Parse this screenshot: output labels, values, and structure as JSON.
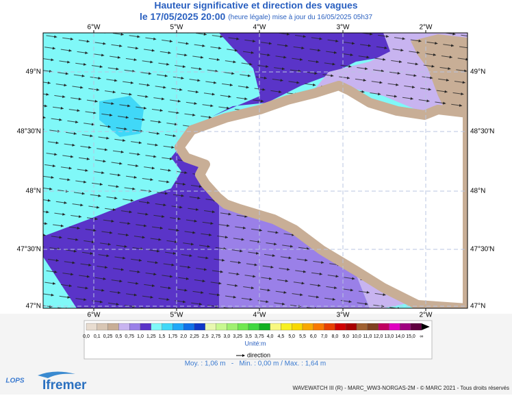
{
  "header": {
    "title": "Hauteur significative et direction des vagues",
    "date": "le 17/05/2025 20:00",
    "note": "(heure légale) mise à jour du 16/05/2025 05h37"
  },
  "map": {
    "lon_labels": [
      "6°W",
      "5°W",
      "4°W",
      "3°W",
      "2°W"
    ],
    "lat_labels": [
      "49°N",
      "48°30'N",
      "48°N",
      "47°30'N",
      "47°N"
    ]
  },
  "legend": {
    "labels": [
      "0,0",
      "0,1",
      "0,25",
      "0,5",
      "0,75",
      "1,0",
      "1,25",
      "1,5",
      "1,75",
      "2,0",
      "2,25",
      "2,5",
      "2,75",
      "3,0",
      "3,25",
      "3,5",
      "3,75",
      "4,0",
      "4,5",
      "5,0",
      "5,5",
      "6,0",
      "7,0",
      "8,0",
      "9,0",
      "10,0",
      "11,0",
      "12,0",
      "13,0",
      "14,0",
      "15,0",
      "∞"
    ],
    "colors": [
      "#e8dcd0",
      "#d8c6b4",
      "#c8ae96",
      "#c8b4f0",
      "#9a80e8",
      "#5a34c8",
      "#80f8f8",
      "#40d8f8",
      "#20a8f8",
      "#1070e8",
      "#1038c8",
      "#e8f8b0",
      "#c8f890",
      "#a0f070",
      "#70e850",
      "#40d840",
      "#10b020",
      "#f8f880",
      "#f8f020",
      "#f8d800",
      "#f8a800",
      "#f87800",
      "#e84000",
      "#d00000",
      "#a80000",
      "#a06030",
      "#804020",
      "#c00060",
      "#e000c0",
      "#a00080",
      "#600040"
    ],
    "unit": "Unité:m",
    "direction": "direction",
    "stats": "Moy. : 1,06 m   -   Min. : 0,00 m / Max. : 1,64 m"
  },
  "footer": {
    "lops": "LOPS",
    "ifremer": "Ifremer",
    "credits": "WAVEWATCH III (R) - MARC_WW3-NORGAS-2M - © MARC 2021 - Tous droits réservés"
  }
}
